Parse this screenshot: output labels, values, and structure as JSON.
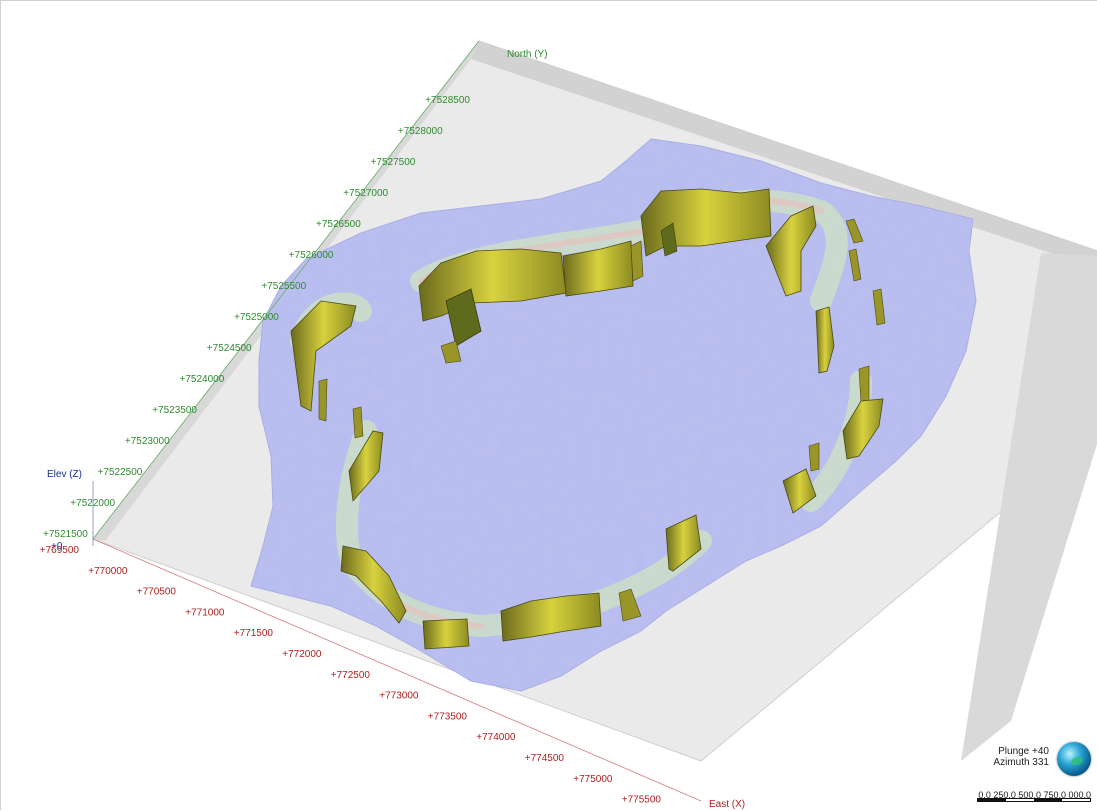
{
  "axes": {
    "north_title": "North (Y)",
    "east_title": "East (X)",
    "elev_title": "Elev (Z)",
    "elev_zero": "+0",
    "north_ticks": [
      "+7521500",
      "+7522000",
      "+7522500",
      "+7523000",
      "+7523500",
      "+7524000",
      "+7524500",
      "+7525000",
      "+7525500",
      "+7526000",
      "+7526500",
      "+7527000",
      "+7527500",
      "+7528000",
      "+7528500"
    ],
    "east_ticks": [
      "+769500",
      "+770000",
      "+770500",
      "+771000",
      "+771500",
      "+772000",
      "+772500",
      "+773000",
      "+773500",
      "+774000",
      "+774500",
      "+775000",
      "+775500"
    ]
  },
  "compass": {
    "plunge": "Plunge +40",
    "azimuth": "Azimuth 331",
    "scale": "0,0  250,0  500,0  750,0 000,0"
  },
  "colors": {
    "north_axis": "#2e8b2e",
    "east_axis": "#b02020",
    "elev_axis": "#1a2a9c",
    "surface": "#b8bdf2",
    "slab": "#c8c23a",
    "ground": "#e9e9e9"
  }
}
